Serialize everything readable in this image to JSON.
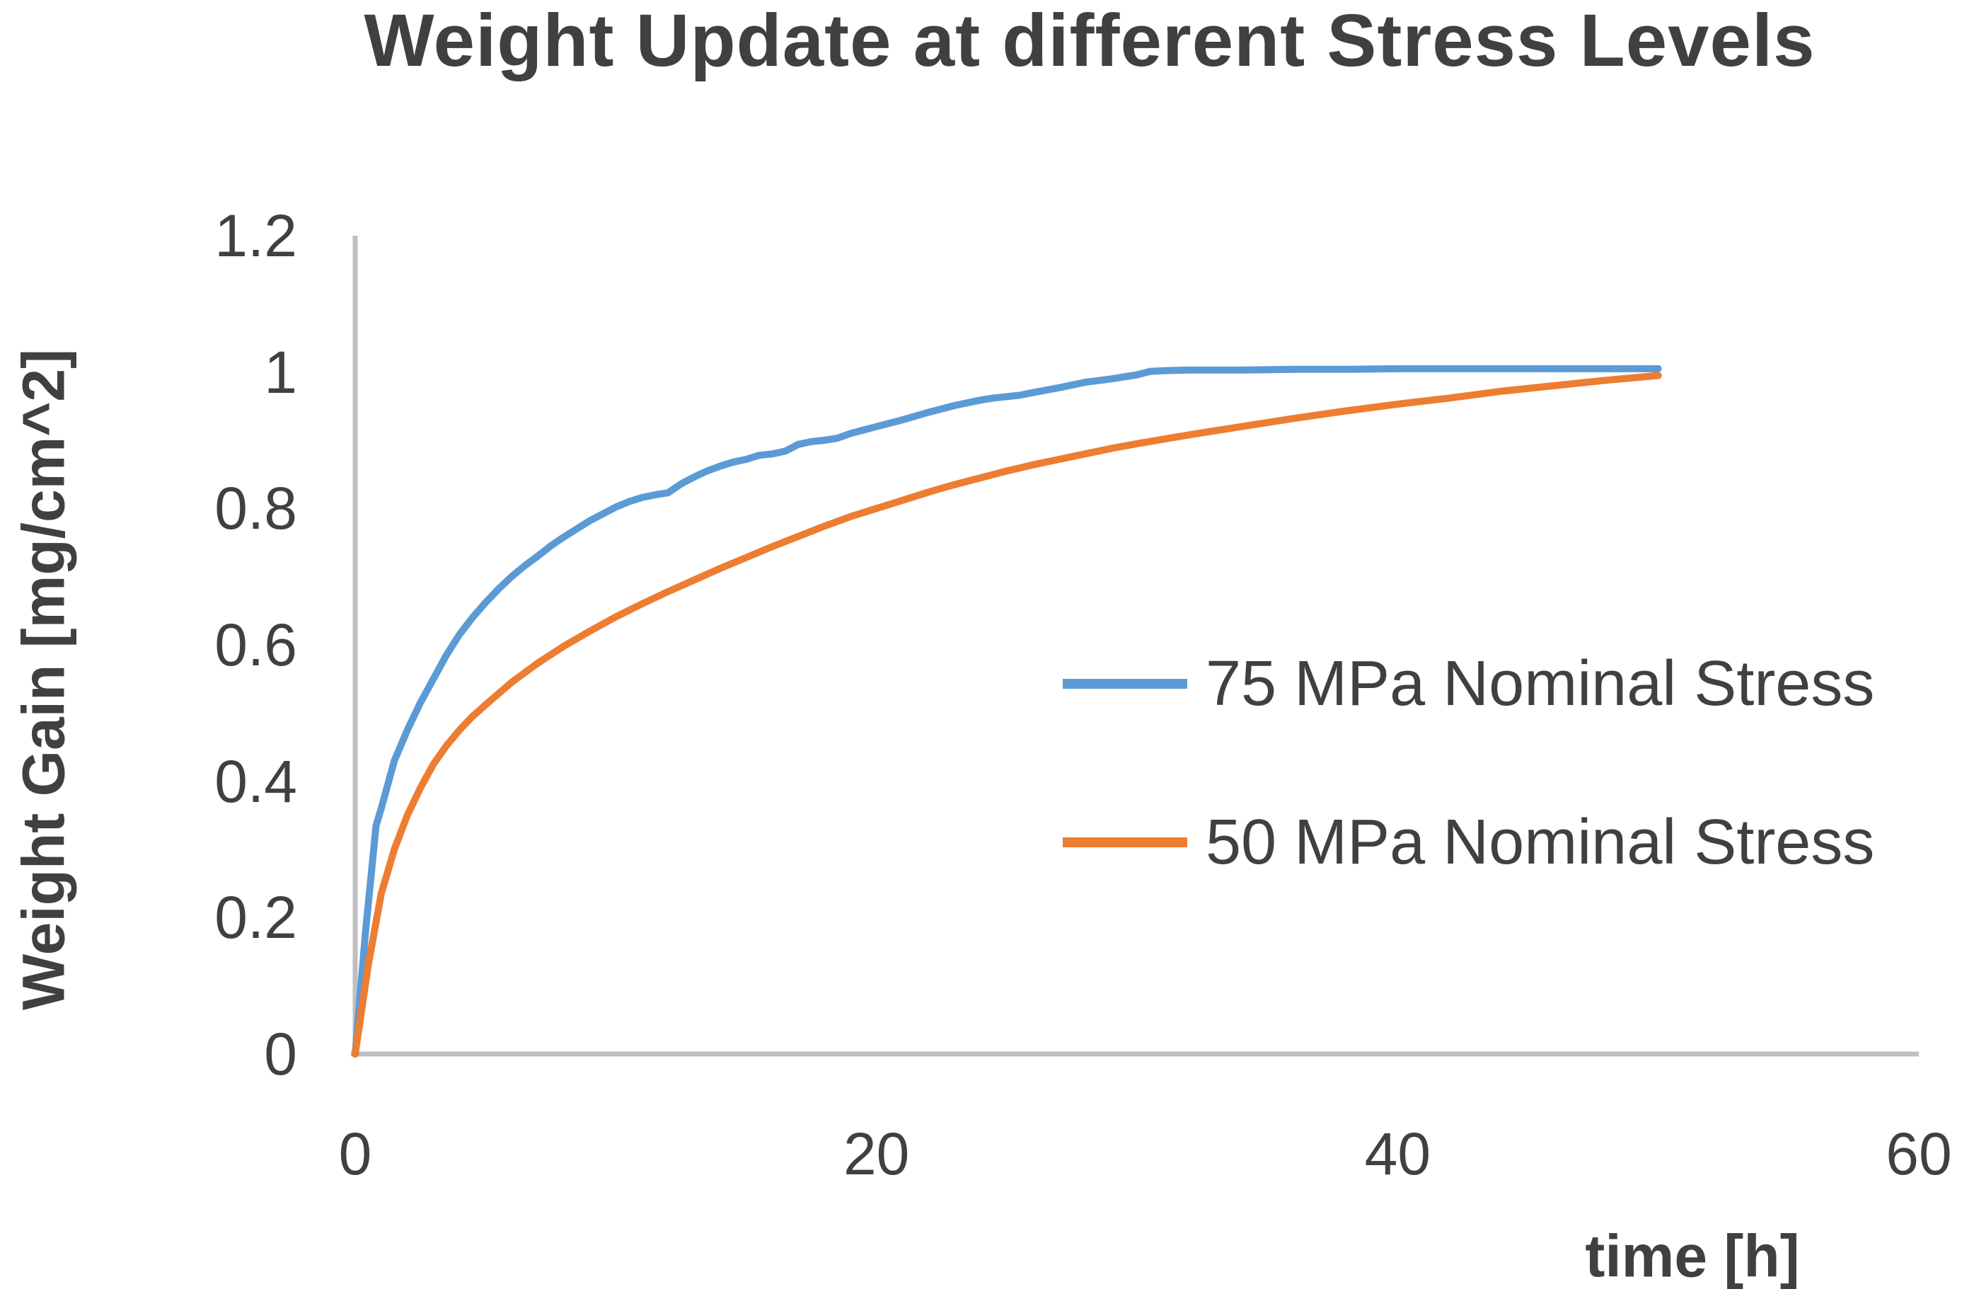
{
  "chart_data": {
    "type": "line",
    "title": "Weight Update at different Stress Levels",
    "xlabel": "time [h]",
    "ylabel": "Weight Gain [mg/cm^2]",
    "xlim": [
      0,
      60
    ],
    "ylim": [
      0,
      1.2
    ],
    "x_tick_labels": [
      "0",
      "20",
      "40",
      "60"
    ],
    "y_tick_labels": [
      "0",
      "0.2",
      "0.4",
      "0.6",
      "0.8",
      "1",
      "1.2"
    ],
    "grid": false,
    "legend_position": "center-right",
    "colors": {
      "axis_line": "#BFBFBF",
      "text": "#404040",
      "background": "#FFFFFF",
      "series_75mpa": "#5B9BD5",
      "series_50mpa": "#ED7D31"
    },
    "series": [
      {
        "name": "75 MPa Nominal Stress",
        "color": "#5B9BD5",
        "x": [
          0,
          0.4,
          0.8,
          1,
          1.5,
          2,
          2.5,
          3,
          3.5,
          4,
          4.5,
          5,
          5.5,
          6,
          6.5,
          7,
          7.5,
          8,
          8.5,
          9,
          9.5,
          10,
          10.5,
          11,
          11.5,
          12,
          12.5,
          13,
          13.5,
          14,
          14.5,
          15,
          15.5,
          16,
          16.5,
          17,
          17.5,
          18,
          18.5,
          19,
          19.5,
          20,
          21,
          22,
          23,
          24,
          24.5,
          25,
          25.5,
          26,
          27,
          28,
          29,
          30,
          30.5,
          31,
          32,
          34,
          36,
          38,
          40,
          42,
          44,
          46,
          48,
          50
        ],
        "y": [
          0,
          0.18,
          0.335,
          0.36,
          0.43,
          0.475,
          0.515,
          0.55,
          0.585,
          0.615,
          0.64,
          0.662,
          0.682,
          0.7,
          0.716,
          0.73,
          0.745,
          0.758,
          0.77,
          0.782,
          0.792,
          0.802,
          0.81,
          0.816,
          0.82,
          0.823,
          0.836,
          0.846,
          0.855,
          0.862,
          0.868,
          0.872,
          0.878,
          0.88,
          0.884,
          0.894,
          0.898,
          0.9,
          0.903,
          0.91,
          0.915,
          0.92,
          0.93,
          0.941,
          0.951,
          0.959,
          0.962,
          0.964,
          0.966,
          0.97,
          0.977,
          0.985,
          0.99,
          0.996,
          1.001,
          1.002,
          1.003,
          1.003,
          1.004,
          1.004,
          1.005,
          1.005,
          1.005,
          1.005,
          1.005,
          1.005
        ]
      },
      {
        "name": "50 MPa Nominal Stress",
        "color": "#ED7D31",
        "x": [
          0,
          0.5,
          1,
          1.5,
          2,
          2.5,
          3,
          3.5,
          4,
          4.5,
          5,
          6,
          7,
          8,
          9,
          10,
          11,
          12,
          13,
          14,
          15,
          16,
          17,
          18,
          19,
          20,
          21,
          22,
          23,
          24,
          25,
          26,
          27,
          28,
          29,
          30,
          32,
          34,
          36,
          38,
          40,
          42,
          44,
          46,
          48,
          50
        ],
        "y": [
          0,
          0.13,
          0.235,
          0.3,
          0.35,
          0.39,
          0.425,
          0.452,
          0.475,
          0.495,
          0.512,
          0.545,
          0.573,
          0.598,
          0.62,
          0.641,
          0.66,
          0.678,
          0.695,
          0.712,
          0.728,
          0.744,
          0.759,
          0.774,
          0.788,
          0.8,
          0.812,
          0.824,
          0.835,
          0.845,
          0.855,
          0.864,
          0.872,
          0.88,
          0.888,
          0.895,
          0.908,
          0.92,
          0.932,
          0.943,
          0.953,
          0.962,
          0.972,
          0.98,
          0.988,
          0.995
        ]
      }
    ]
  }
}
